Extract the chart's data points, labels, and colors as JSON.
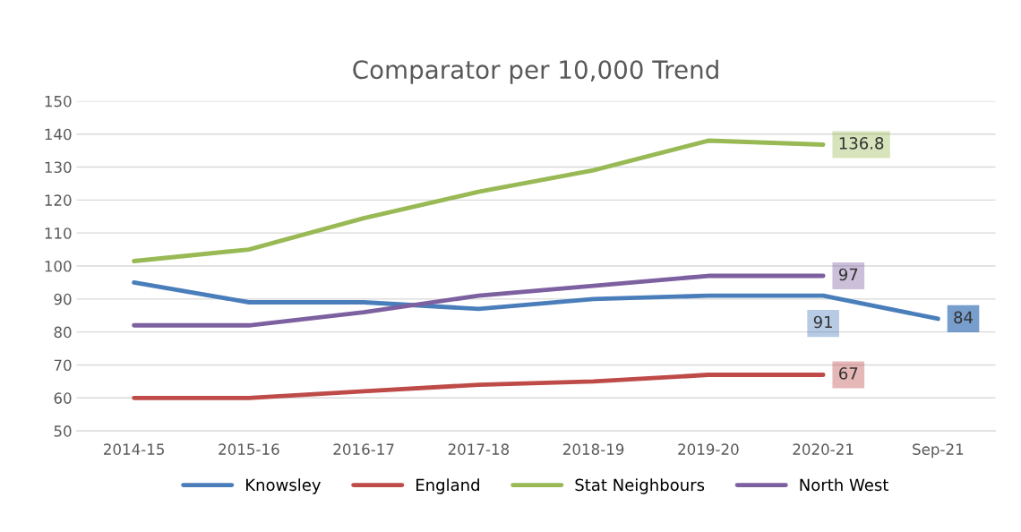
{
  "chart_data": {
    "type": "line",
    "title": "Comparator per 10,000 Trend",
    "categories": [
      "2014-15",
      "2015-16",
      "2016-17",
      "2017-18",
      "2018-19",
      "2019-20",
      "2020-21",
      "Sep-21"
    ],
    "series": [
      {
        "name": "Knowsley",
        "color": "#4a7ebb",
        "values": [
          95,
          89,
          89,
          87,
          90,
          91,
          91,
          84
        ],
        "value_labels": [
          null,
          null,
          null,
          null,
          null,
          null,
          "91",
          "84"
        ]
      },
      {
        "name": "England",
        "color": "#be4b48",
        "values": [
          60,
          60,
          62,
          64,
          65,
          67,
          67,
          null
        ],
        "value_labels": [
          null,
          null,
          null,
          null,
          null,
          null,
          "67",
          null
        ]
      },
      {
        "name": "Stat Neighbours",
        "color": "#98b954",
        "values": [
          101.5,
          105,
          114.5,
          122.5,
          129,
          138,
          136.8,
          null
        ],
        "value_labels": [
          null,
          null,
          null,
          null,
          null,
          null,
          "136.8",
          null
        ]
      },
      {
        "name": "North West",
        "color": "#7d60a0",
        "values": [
          82,
          82,
          86,
          91,
          94,
          97,
          97,
          null
        ],
        "value_labels": [
          null,
          null,
          null,
          null,
          null,
          null,
          "97",
          null
        ]
      }
    ],
    "ylim": [
      50,
      150
    ],
    "yticks": [
      50,
      60,
      70,
      80,
      90,
      100,
      110,
      120,
      130,
      140,
      150
    ],
    "grid": "y",
    "legend": "bottom",
    "marker": "none",
    "line_style": "solid"
  }
}
